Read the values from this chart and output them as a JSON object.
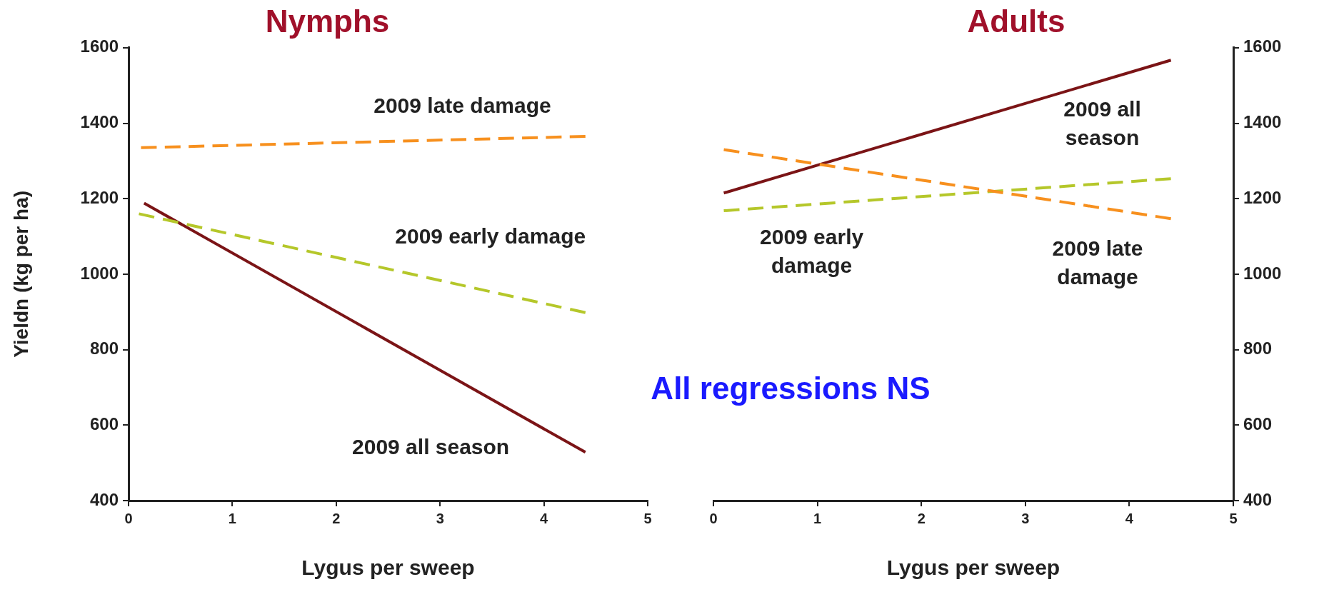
{
  "chart_data": [
    {
      "type": "line",
      "title": "Nymphs",
      "xlabel": "Lygus per sweep",
      "ylabel": "Yieldn (kg per ha)",
      "xlim": [
        0,
        5
      ],
      "xticks": [
        0,
        1,
        2,
        3,
        4,
        5
      ],
      "ylim": [
        400,
        1600
      ],
      "yticks": [
        400,
        600,
        800,
        1000,
        1200,
        1400,
        1600
      ],
      "grid": false,
      "legend": false,
      "marker": "none",
      "annotations": [
        "All regressions NS"
      ],
      "series": [
        {
          "name": "2009 late damage",
          "color": "#f7901e",
          "line_style": "dashed",
          "x": [
            0.12,
            4.4
          ],
          "values": [
            1335,
            1365
          ]
        },
        {
          "name": "2009 early damage",
          "color": "#b5c72a",
          "line_style": "dashed",
          "x": [
            0.1,
            4.4
          ],
          "values": [
            1160,
            898
          ]
        },
        {
          "name": "2009 all season",
          "color": "#7b1416",
          "line_style": "solid",
          "x": [
            0.15,
            4.4
          ],
          "values": [
            1188,
            528
          ]
        }
      ]
    },
    {
      "type": "line",
      "title": "Adults",
      "xlabel": "Lygus per sweep",
      "xlim": [
        0,
        5
      ],
      "xticks": [
        0,
        1,
        2,
        3,
        4,
        5
      ],
      "ylim": [
        400,
        1600
      ],
      "yticks": [
        400,
        600,
        800,
        1000,
        1200,
        1400,
        1600
      ],
      "grid": false,
      "legend": false,
      "marker": "none",
      "series": [
        {
          "name": "2009 late damage",
          "color": "#f7901e",
          "line_style": "dashed",
          "x": [
            0.1,
            4.4
          ],
          "values": [
            1330,
            1147
          ]
        },
        {
          "name": "2009 early damage",
          "color": "#b5c72a",
          "line_style": "dashed",
          "x": [
            0.1,
            4.4
          ],
          "values": [
            1168,
            1253
          ]
        },
        {
          "name": "2009 all season",
          "color": "#7b1416",
          "line_style": "solid",
          "x": [
            0.1,
            4.4
          ],
          "values": [
            1215,
            1567
          ]
        }
      ]
    }
  ]
}
